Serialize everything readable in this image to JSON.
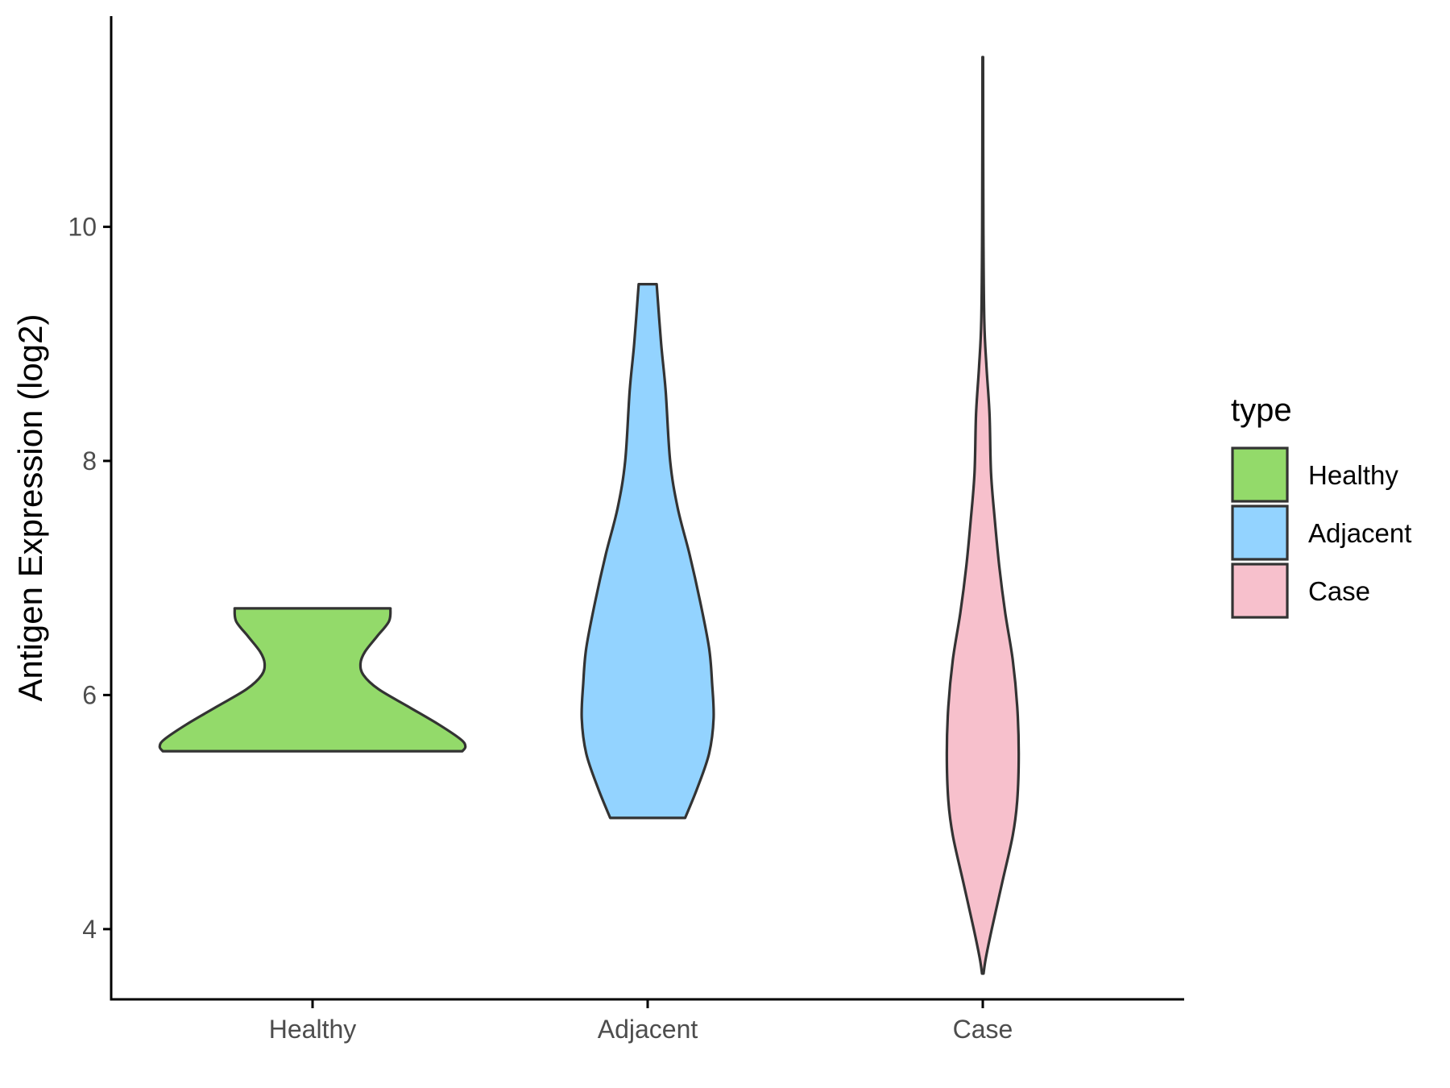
{
  "chart_data": {
    "type": "violin",
    "title": "",
    "xlabel": "",
    "ylabel": "Antigen Expression (log2)",
    "categories": [
      "Healthy",
      "Adjacent",
      "Case"
    ],
    "yticks": [
      4,
      6,
      8,
      10
    ],
    "ylim": [
      3.4,
      11.8
    ],
    "grid": false,
    "legend": {
      "title": "type",
      "position": "right",
      "entries": [
        "Healthy",
        "Adjacent",
        "Case"
      ]
    },
    "colors": {
      "Healthy": "#93DA6A",
      "Adjacent": "#93D3FF",
      "Case": "#F7C0CC",
      "outline": "#333333"
    },
    "series": [
      {
        "name": "Healthy",
        "profile": [
          [
            5.52,
            1.0
          ],
          [
            5.56,
            1.02
          ],
          [
            5.62,
            0.99
          ],
          [
            5.75,
            0.84
          ],
          [
            5.9,
            0.64
          ],
          [
            6.05,
            0.44
          ],
          [
            6.17,
            0.34
          ],
          [
            6.27,
            0.32
          ],
          [
            6.37,
            0.35
          ],
          [
            6.5,
            0.43
          ],
          [
            6.63,
            0.51
          ],
          [
            6.74,
            0.52
          ]
        ]
      },
      {
        "name": "Adjacent",
        "profile": [
          [
            4.95,
            0.25
          ],
          [
            5.2,
            0.33
          ],
          [
            5.5,
            0.41
          ],
          [
            5.8,
            0.44
          ],
          [
            6.1,
            0.43
          ],
          [
            6.4,
            0.41
          ],
          [
            6.8,
            0.35
          ],
          [
            7.2,
            0.28
          ],
          [
            7.6,
            0.2
          ],
          [
            8.0,
            0.15
          ],
          [
            8.6,
            0.12
          ],
          [
            9.0,
            0.09
          ],
          [
            9.51,
            0.06
          ]
        ]
      },
      {
        "name": "Case",
        "profile": [
          [
            3.62,
            0.005
          ],
          [
            3.75,
            0.02
          ],
          [
            4.0,
            0.06
          ],
          [
            4.4,
            0.13
          ],
          [
            4.8,
            0.2
          ],
          [
            5.1,
            0.23
          ],
          [
            5.5,
            0.24
          ],
          [
            5.9,
            0.23
          ],
          [
            6.3,
            0.2
          ],
          [
            6.7,
            0.15
          ],
          [
            7.1,
            0.11
          ],
          [
            7.5,
            0.08
          ],
          [
            7.9,
            0.055
          ],
          [
            8.4,
            0.045
          ],
          [
            8.8,
            0.025
          ],
          [
            9.2,
            0.01
          ],
          [
            10.0,
            0.004
          ],
          [
            11.45,
            0.002
          ]
        ]
      }
    ]
  }
}
